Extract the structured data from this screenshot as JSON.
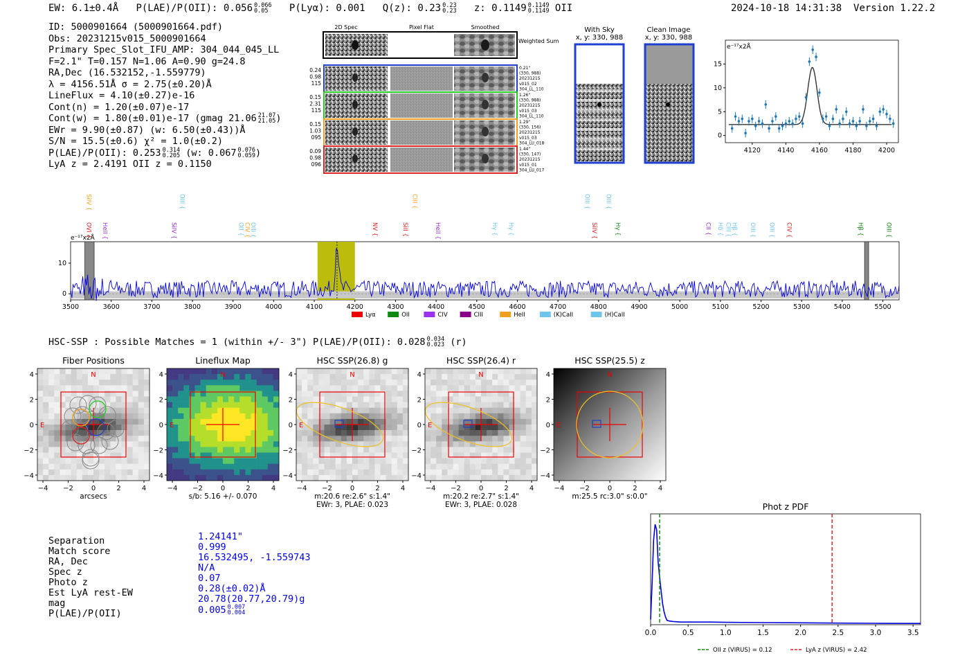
{
  "header": {
    "ew": "EW: 6.1±0.4Å",
    "plae_label": "P(LAE)/P(OII): 0.056",
    "plae_up": "0.066",
    "plae_dn": "0.05",
    "plya": "P(Lyα): 0.001",
    "qz_label": "Q(z): 0.23",
    "qz_up": "0.23",
    "qz_dn": "0.23",
    "z_label": "z: 0.1149",
    "z_up": "0.1149",
    "z_dn": "0.1149",
    "z_line": "OII",
    "timestamp": "2024-10-18 14:31:38",
    "version": "Version 1.22.2"
  },
  "info": {
    "id": "ID: 5000901664 (5000901664.pdf)",
    "obs": "Obs: 20231215v015_5000901664",
    "primary": "Primary Spec_Slot_IFU_AMP: 304_044_045_LL",
    "fibers": "F=2.1\"  T=0.157  N=1.06  A=0.90  g=24.8",
    "radec": "RA,Dec (16.532152,-1.559779)",
    "lambda": "λ = 4156.51Å  σ = 2.75(±0.20)Å",
    "lineflux": "LineFlux = 4.10(±0.27)e-16",
    "contn": "Cont(n) = 1.20(±0.07)e-17",
    "contw": "Cont(w) = 1.80(±0.01)e-17 (gmag 21.06",
    "contw_up": "21.07",
    "contw_dn": "21.05",
    "ewr": "EWr = 9.90(±0.87) (w: 6.50(±0.43))Å",
    "sn": "S/N = 15.5(±0.6)  χ² = 1.0(±0.2)",
    "plae": "P(LAE)/P(OII): 0.253",
    "plae_up": "0.314",
    "plae_dn": "0.205",
    "plae_w": "(w: 0.067",
    "plae_w_up": "0.076",
    "plae_w_dn": "0.059",
    "lya": "LyA z = 2.4191  OII z = 0.1150"
  },
  "spec2d": {
    "col_headers": [
      "2D Spec",
      "Pixel Flat",
      "Smoothed"
    ],
    "weighted_label": "Weighted Sum",
    "rows": [
      {
        "left": [
          "0.24",
          "0.98",
          "115"
        ],
        "right": [
          "0.21\"",
          "(330, 988)",
          "20231215",
          "v015_02",
          "304_LL_110"
        ],
        "color": "#1f3fd0"
      },
      {
        "left": [
          "0.15",
          "2.31",
          "115"
        ],
        "right": [
          "1.26\"",
          "(330, 988)",
          "20231215",
          "v015_03",
          "304_LL_110"
        ],
        "color": "#22cc22"
      },
      {
        "left": [
          "0.15",
          "1.03",
          "095"
        ],
        "right": [
          "1.29\"",
          "(330, 156)",
          "20231215",
          "v015_03",
          "304_LU_018"
        ],
        "color": "#f0a020"
      },
      {
        "left": [
          "0.09",
          "0.98",
          "096"
        ],
        "right": [
          "1.44\"",
          "(330, 147)",
          "20231215",
          "v015_01",
          "304_LU_017"
        ],
        "color": "#dd2222"
      }
    ]
  },
  "cutouts": {
    "with_sky": {
      "title": "With Sky",
      "coord": "x, y: 330, 988"
    },
    "clean": {
      "title": "Clean Image",
      "coord": "x, y: 330, 988"
    }
  },
  "zoom_spectrum": {
    "chart_data": {
      "type": "scatter",
      "unit_label": "e⁻¹⁷x2Å",
      "x": [
        4108,
        4110,
        4112,
        4114,
        4116,
        4118,
        4120,
        4122,
        4124,
        4126,
        4128,
        4130,
        4132,
        4134,
        4136,
        4138,
        4140,
        4142,
        4144,
        4146,
        4148,
        4150,
        4152,
        4154,
        4156,
        4158,
        4160,
        4162,
        4164,
        4166,
        4168,
        4170,
        4172,
        4174,
        4176,
        4178,
        4180,
        4182,
        4184,
        4186,
        4188,
        4190,
        4192,
        4194,
        4196,
        4198,
        4200,
        4202,
        4204
      ],
      "y": [
        1.5,
        4.0,
        3.0,
        3.5,
        0.5,
        3.0,
        3.5,
        2.0,
        3.0,
        2.5,
        6.5,
        1.5,
        3.0,
        4.0,
        1.5,
        2.0,
        2.5,
        3.0,
        2.5,
        3.5,
        4.0,
        2.5,
        8.0,
        15.5,
        18.0,
        16.5,
        9.0,
        3.5,
        4.0,
        2.0,
        3.5,
        5.5,
        2.5,
        3.5,
        5.0,
        2.5,
        3.0,
        2.0,
        3.0,
        5.5,
        2.0,
        3.0,
        3.5,
        2.0,
        5.0,
        5.5,
        4.5,
        3.5,
        2.5
      ],
      "fit_baseline": 2.3,
      "fit_amp": 12.0,
      "fit_center": 4155.8,
      "fit_sigma": 2.75,
      "xlim": [
        4104,
        4207
      ],
      "ylim": [
        -1.5,
        20
      ],
      "xticks": [
        4120,
        4140,
        4160,
        4180,
        4200
      ],
      "yticks": [
        0,
        5,
        10,
        15
      ]
    }
  },
  "full_spectrum": {
    "chart_data": {
      "type": "line",
      "unit_label": "e⁻¹⁷x2Å",
      "xlim": [
        3500,
        5540
      ],
      "ylim": [
        -2,
        17
      ],
      "xticks": [
        3500,
        3600,
        3700,
        3800,
        3900,
        4000,
        4100,
        4200,
        4300,
        4400,
        4500,
        4600,
        4700,
        4800,
        4900,
        5000,
        5100,
        5200,
        5300,
        5400,
        5500
      ],
      "yticks": [
        0,
        10
      ],
      "highlight": [
        4108,
        4200
      ],
      "peak_x": 4156,
      "peak_y": 15.5,
      "masked": [
        [
          3535,
          3558
        ],
        [
          5455,
          5465
        ]
      ],
      "lines_top": [
        {
          "name": "SiIV",
          "x": 3540,
          "color": "#f0a020"
        },
        {
          "name": "OIII",
          "x": 3770,
          "color": "#6fc5ea"
        },
        {
          "name": "CIII",
          "x": 4343,
          "color": "#f0a020"
        },
        {
          "name": "OIII",
          "x": 4767,
          "color": "#6fc5ea"
        },
        {
          "name": "OIII",
          "x": 4820,
          "color": "#6fc5ea"
        }
      ],
      "lines": [
        {
          "name": "OVI",
          "x": 3540,
          "color": "#dd2222"
        },
        {
          "name": "HeII",
          "x": 3580,
          "color": "#9933cc"
        },
        {
          "name": "SiIV",
          "x": 3750,
          "color": "#9933cc"
        },
        {
          "name": "OII",
          "x": 3915,
          "color": "#6fc5ea"
        },
        {
          "name": "CIV",
          "x": 3930,
          "color": "#f0a020"
        },
        {
          "name": "OIII",
          "x": 3945,
          "color": "#6fc5ea"
        },
        {
          "name": "NV",
          "x": 4245,
          "color": "#dd2222"
        },
        {
          "name": "SiII",
          "x": 4320,
          "color": "#dd2222"
        },
        {
          "name": "HeII",
          "x": 4400,
          "color": "#9933cc"
        },
        {
          "name": "Hγ",
          "x": 4540,
          "color": "#6fc5ea"
        },
        {
          "name": "Hγ",
          "x": 4580,
          "color": "#6fc5ea"
        },
        {
          "name": "SiIV",
          "x": 4785,
          "color": "#dd2222"
        },
        {
          "name": "Hγ",
          "x": 4843,
          "color": "#118811"
        },
        {
          "name": "CII",
          "x": 5065,
          "color": "#9933cc"
        },
        {
          "name": "Hδ",
          "x": 5095,
          "color": "#6fc5ea"
        },
        {
          "name": "CIII",
          "x": 5115,
          "color": "#6fc5ea"
        },
        {
          "name": "Hβ",
          "x": 5130,
          "color": "#6fc5ea"
        },
        {
          "name": "OIII",
          "x": 5175,
          "color": "#6fc5ea"
        },
        {
          "name": "OIII",
          "x": 5222,
          "color": "#6fc5ea"
        },
        {
          "name": "CIV",
          "x": 5265,
          "color": "#dd2222"
        },
        {
          "name": "Hβ",
          "x": 5440,
          "color": "#118811"
        },
        {
          "name": "OIII",
          "x": 5510,
          "color": "#118811"
        }
      ],
      "legend": [
        {
          "name": "Lyα",
          "color": "#ee0000"
        },
        {
          "name": "OII",
          "color": "#118811"
        },
        {
          "name": "CIV",
          "color": "#9933ee"
        },
        {
          "name": "CIII",
          "color": "#880088"
        },
        {
          "name": "HeII",
          "color": "#f0a020"
        },
        {
          "name": "(K)CaII",
          "color": "#6fc5ea"
        },
        {
          "name": "(H)CaII",
          "color": "#6fc5ea"
        }
      ]
    }
  },
  "hsc": {
    "heading": "HSC-SSP : Possible Matches = 1 (within +/- 3\")  P(LAE)/P(OII): 0.028",
    "heading_up": "0.034",
    "heading_dn": "0.023",
    "heading_band": "(r)",
    "panels": [
      {
        "title": "Fiber Positions",
        "caption1": "arcsecs",
        "caption2": ""
      },
      {
        "title": "Lineflux Map",
        "caption1": "s/b: 5.16 +/- 0.070",
        "caption2": ""
      },
      {
        "title": "HSC SSP(26.8) g",
        "caption1": "m:20.6  re:2.6\"  s:1.4\"",
        "caption2": "EWr: 3, PLAE: 0.023"
      },
      {
        "title": "HSC SSP(26.4) r",
        "caption1": "m:20.2  re:2.7\"  s:1.4\"",
        "caption2": "EWr: 3, PLAE: 0.028"
      },
      {
        "title": "HSC SSP(25.5) z",
        "caption1": "m:25.5 rc:3.0\"  s:0.0\"",
        "caption2": ""
      }
    ],
    "ticks": [
      "4",
      "2",
      "0",
      "−2",
      "−4"
    ],
    "xticks": [
      "−4",
      "−2",
      "0",
      "2",
      "4"
    ],
    "north": "N",
    "east": "E"
  },
  "match": {
    "labels": [
      "Separation",
      "Match score",
      "RA, Dec",
      "Spec z",
      "Photo z",
      "Est LyA rest-EW",
      "mag",
      "P(LAE)/P(OII)"
    ],
    "values": [
      "1.24141\"",
      "0.999",
      "16.532495, -1.559743",
      "N/A",
      "0.07",
      "0.28(±0.02)Å",
      "20.78(20.77,20.79)g",
      "0.005"
    ],
    "plae_up": "0.007",
    "plae_dn": "0.004"
  },
  "photz": {
    "chart_data": {
      "type": "line",
      "title": "Phot z PDF",
      "xlim": [
        0,
        3.6
      ],
      "ylim": [
        0,
        1.05
      ],
      "xticks": [
        0.0,
        0.5,
        1.0,
        1.5,
        2.0,
        2.5,
        3.0,
        3.5
      ],
      "oii_z": 0.12,
      "lya_z": 2.42,
      "legend_oii": "OII z (VIRUS) = 0.12",
      "legend_lya": "LyA z (VIRUS) = 2.42",
      "curve_x": [
        0.0,
        0.02,
        0.04,
        0.06,
        0.08,
        0.1,
        0.12,
        0.14,
        0.16,
        0.18,
        0.2,
        0.22,
        0.25,
        0.3,
        0.4,
        0.6,
        0.8,
        1.0,
        1.5,
        2.0,
        2.5,
        3.0,
        3.6
      ],
      "curve_y": [
        0.05,
        0.4,
        0.8,
        0.95,
        0.9,
        0.6,
        0.45,
        0.32,
        0.2,
        0.12,
        0.07,
        0.04,
        0.035,
        0.03,
        0.025,
        0.025,
        0.025,
        0.022,
        0.02,
        0.018,
        0.015,
        0.013,
        0.012
      ]
    }
  }
}
